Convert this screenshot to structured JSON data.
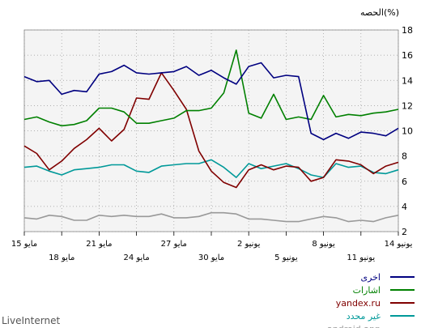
{
  "chart_data": {
    "type": "line",
    "title": "الحصه(%)",
    "ylim": [
      2,
      18
    ],
    "yticks": [
      2,
      4,
      6,
      8,
      10,
      12,
      14,
      16,
      18
    ],
    "grid": true,
    "legend_position": "bottom-right",
    "x_labels_row1": [
      "14 يونيو",
      "8 يونيو",
      "2 يونيو",
      "27 مايو",
      "21 مايو",
      "15 مايو"
    ],
    "x_labels_row2": [
      "11 يونيو",
      "5 يونيو",
      "30 مايو",
      "24 مايو",
      "18 مايو"
    ],
    "series": [
      {
        "name": "اخرى",
        "color": "#000080",
        "values": [
          10.2,
          9.6,
          9.8,
          9.9,
          9.4,
          9.8,
          9.3,
          9.8,
          14.3,
          14.4,
          14.2,
          15.4,
          15.1,
          13.7,
          14.2,
          14.8,
          14.4,
          15.1,
          14.7,
          14.6,
          14.5,
          14.6,
          15.2,
          14.7,
          14.5,
          13.1,
          13.2,
          12.9,
          14.0,
          13.9,
          14.3
        ]
      },
      {
        "name": "اشارات",
        "color": "#008000",
        "values": [
          11.7,
          11.5,
          11.4,
          11.2,
          11.3,
          11.1,
          12.8,
          10.9,
          11.1,
          10.9,
          12.9,
          11.0,
          11.4,
          16.4,
          13.0,
          11.8,
          11.6,
          11.6,
          11.0,
          10.8,
          10.6,
          10.6,
          11.5,
          11.8,
          11.8,
          10.8,
          10.5,
          10.4,
          10.7,
          11.1,
          10.9
        ]
      },
      {
        "name": "yandex.ru",
        "color": "#800000",
        "values": [
          7.5,
          7.2,
          6.6,
          7.3,
          7.6,
          7.7,
          6.3,
          6.0,
          7.1,
          7.2,
          6.9,
          7.3,
          6.9,
          5.5,
          5.9,
          6.8,
          8.4,
          11.7,
          13.2,
          14.6,
          12.5,
          12.6,
          10.1,
          9.2,
          10.2,
          9.3,
          8.6,
          7.6,
          6.9,
          8.2,
          8.8
        ]
      },
      {
        "name": "غير محدد",
        "color": "#009999",
        "values": [
          6.9,
          6.6,
          6.7,
          7.2,
          7.1,
          7.4,
          6.3,
          6.5,
          7.0,
          7.4,
          7.2,
          7.0,
          7.4,
          6.3,
          7.1,
          7.7,
          7.4,
          7.4,
          7.3,
          7.2,
          6.7,
          6.8,
          7.3,
          7.3,
          7.1,
          7.0,
          6.9,
          6.5,
          6.8,
          7.2,
          7.1
        ]
      },
      {
        "name": "android.app",
        "color": "#999999",
        "values": [
          3.3,
          3.1,
          2.8,
          2.9,
          2.8,
          3.1,
          3.2,
          3.0,
          2.8,
          2.8,
          2.9,
          3.0,
          3.0,
          3.4,
          3.5,
          3.5,
          3.2,
          3.1,
          3.1,
          3.4,
          3.2,
          3.2,
          3.3,
          3.2,
          3.3,
          2.9,
          2.9,
          3.2,
          3.3,
          3.0,
          3.1
        ]
      }
    ]
  },
  "footer": {
    "brand": "LiveInternet"
  }
}
